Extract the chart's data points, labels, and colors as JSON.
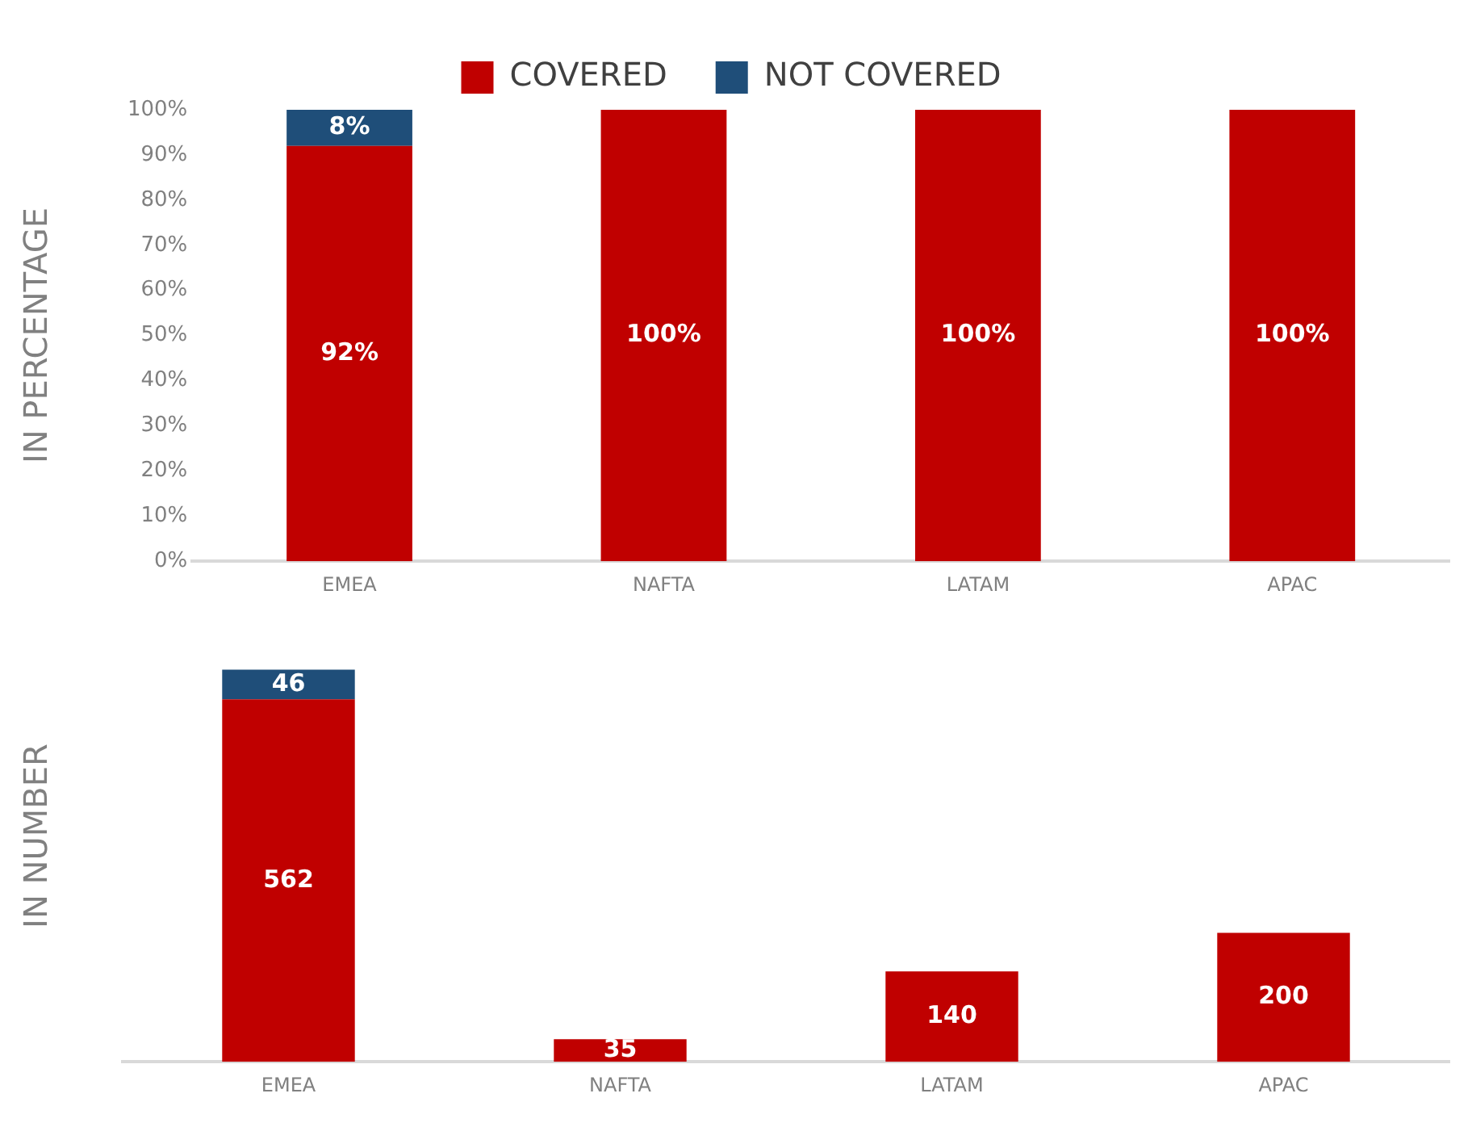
{
  "chart_data": [
    {
      "type": "bar",
      "ylabel": "IN PERCENTAGE",
      "categories": [
        "EMEA",
        "NAFTA",
        "LATAM",
        "APAC"
      ],
      "stacked": true,
      "legend": "top",
      "series": [
        {
          "name": "COVERED",
          "color": "#c00000",
          "values": [
            92,
            100,
            100,
            100
          ],
          "value_labels": [
            "92%",
            "100%",
            "100%",
            "100%"
          ]
        },
        {
          "name": "NOT COVERED",
          "color": "#1f4e79",
          "values": [
            8,
            0,
            0,
            0
          ],
          "value_labels": [
            "8%",
            null,
            null,
            null
          ]
        }
      ],
      "ylim": [
        0,
        100
      ],
      "yticks": [
        {
          "value": 0,
          "label": "0%"
        },
        {
          "value": 10,
          "label": "10%"
        },
        {
          "value": 20,
          "label": "20%"
        },
        {
          "value": 30,
          "label": "30%"
        },
        {
          "value": 40,
          "label": "40%"
        },
        {
          "value": 50,
          "label": "50%"
        },
        {
          "value": 60,
          "label": "60%"
        },
        {
          "value": 70,
          "label": "70%"
        },
        {
          "value": 80,
          "label": "80%"
        },
        {
          "value": 90,
          "label": "90%"
        },
        {
          "value": 100,
          "label": "100%"
        }
      ],
      "grid": false
    },
    {
      "type": "bar",
      "ylabel": "IN NUMBER",
      "categories": [
        "EMEA",
        "NAFTA",
        "LATAM",
        "APAC"
      ],
      "stacked": true,
      "legend": false,
      "tick_labels": "x",
      "series": [
        {
          "color": "#c00000",
          "values": [
            562,
            35,
            140,
            200
          ],
          "value_labels": [
            "562",
            "35",
            "140",
            "200"
          ]
        },
        {
          "color": "#1f4e79",
          "values": [
            46,
            0,
            0,
            0
          ],
          "value_labels": [
            "46",
            null,
            null,
            null
          ]
        }
      ],
      "grid": false
    }
  ]
}
